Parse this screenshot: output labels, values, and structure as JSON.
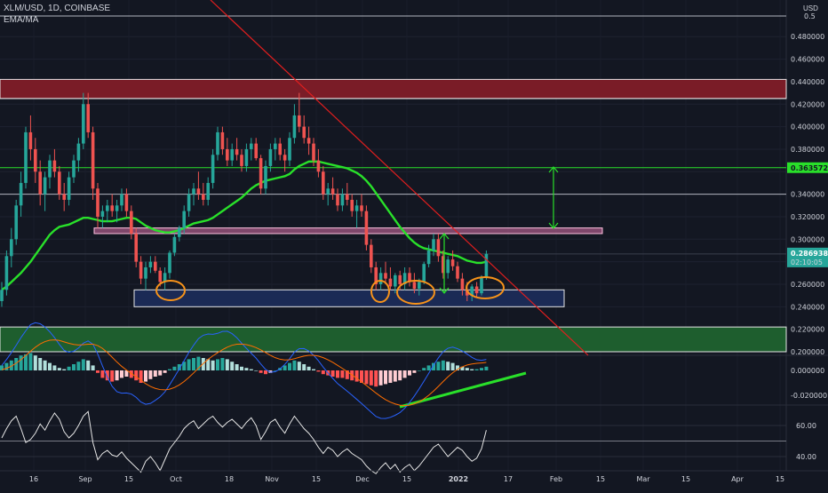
{
  "header": {
    "symbol": "XLM/USD, 1D, COINBASE",
    "indicator": "EMA/MA"
  },
  "currency": "USD",
  "colors": {
    "background": "#131722",
    "up": "#26a69a",
    "down": "#ef5350",
    "ema": "#29e02a",
    "trendline": "#e01e1e",
    "resistance_zone": "#7a1c27",
    "support_zone": "#1e5e2e",
    "target_line": "#29e02a",
    "annotation": "#f7931a",
    "arrow": "#29e02a"
  },
  "chart_data": [
    {
      "type": "candlestick",
      "pane": "price",
      "ylim": [
        0.2,
        0.5
      ],
      "price_ticks": [
        "0.480000",
        "0.460000",
        "0.440000",
        "0.420000",
        "0.400000",
        "0.380000",
        "0.340000",
        "0.320000",
        "0.300000",
        "0.280000",
        "0.260000",
        "0.240000",
        "0.220000",
        "0.200000"
      ],
      "last_price": "0.286938",
      "countdown": "02:10:05",
      "target_price": "0.363572",
      "top_level": "0.5",
      "levels": [
        0.425,
        0.34,
        0.308,
        0.286938,
        0.2
      ],
      "zones": [
        {
          "name": "resistance",
          "from": 0.425,
          "to": 0.442
        },
        {
          "name": "neckline",
          "from": 0.305,
          "to": 0.31
        },
        {
          "name": "support",
          "from": 0.24,
          "to": 0.255
        },
        {
          "name": "demand",
          "from": 0.2,
          "to": 0.222
        }
      ],
      "trendline": {
        "from": [
          "2021-08-02",
          0.5
        ],
        "to": [
          "2022-02-08",
          0.2
        ]
      },
      "x_ticks": [
        "16",
        "Sep",
        "15",
        "Oct",
        "18",
        "Nov",
        "15",
        "Dec",
        "15",
        "2022",
        "17",
        "Feb",
        "15",
        "Mar",
        "15",
        "Apr",
        "15"
      ],
      "ohlc": [
        [
          0.245,
          0.262,
          0.24,
          0.255
        ],
        [
          0.255,
          0.29,
          0.25,
          0.285
        ],
        [
          0.285,
          0.31,
          0.275,
          0.3
        ],
        [
          0.3,
          0.335,
          0.295,
          0.33
        ],
        [
          0.33,
          0.36,
          0.32,
          0.35
        ],
        [
          0.35,
          0.4,
          0.345,
          0.395
        ],
        [
          0.395,
          0.41,
          0.37,
          0.38
        ],
        [
          0.38,
          0.39,
          0.35,
          0.36
        ],
        [
          0.36,
          0.37,
          0.33,
          0.34
        ],
        [
          0.34,
          0.36,
          0.325,
          0.355
        ],
        [
          0.355,
          0.375,
          0.345,
          0.37
        ],
        [
          0.37,
          0.38,
          0.355,
          0.36
        ],
        [
          0.36,
          0.365,
          0.335,
          0.34
        ],
        [
          0.34,
          0.35,
          0.325,
          0.335
        ],
        [
          0.335,
          0.36,
          0.33,
          0.355
        ],
        [
          0.355,
          0.375,
          0.35,
          0.37
        ],
        [
          0.37,
          0.39,
          0.36,
          0.385
        ],
        [
          0.385,
          0.43,
          0.38,
          0.42
        ],
        [
          0.42,
          0.43,
          0.39,
          0.395
        ],
        [
          0.395,
          0.4,
          0.335,
          0.345
        ],
        [
          0.345,
          0.35,
          0.31,
          0.32
        ],
        [
          0.32,
          0.33,
          0.31,
          0.325
        ],
        [
          0.325,
          0.335,
          0.315,
          0.33
        ],
        [
          0.33,
          0.34,
          0.32,
          0.325
        ],
        [
          0.325,
          0.335,
          0.315,
          0.33
        ],
        [
          0.33,
          0.345,
          0.325,
          0.34
        ],
        [
          0.34,
          0.345,
          0.32,
          0.325
        ],
        [
          0.325,
          0.33,
          0.3,
          0.305
        ],
        [
          0.305,
          0.31,
          0.275,
          0.28
        ],
        [
          0.28,
          0.285,
          0.26,
          0.265
        ],
        [
          0.265,
          0.28,
          0.255,
          0.275
        ],
        [
          0.275,
          0.285,
          0.27,
          0.28
        ],
        [
          0.28,
          0.285,
          0.27,
          0.272
        ],
        [
          0.272,
          0.275,
          0.258,
          0.262
        ],
        [
          0.262,
          0.275,
          0.255,
          0.27
        ],
        [
          0.27,
          0.29,
          0.265,
          0.288
        ],
        [
          0.288,
          0.305,
          0.285,
          0.302
        ],
        [
          0.302,
          0.312,
          0.298,
          0.31
        ],
        [
          0.31,
          0.33,
          0.305,
          0.325
        ],
        [
          0.325,
          0.345,
          0.32,
          0.34
        ],
        [
          0.34,
          0.35,
          0.33,
          0.345
        ],
        [
          0.345,
          0.36,
          0.335,
          0.34
        ],
        [
          0.34,
          0.35,
          0.33,
          0.335
        ],
        [
          0.335,
          0.355,
          0.33,
          0.35
        ],
        [
          0.35,
          0.38,
          0.345,
          0.375
        ],
        [
          0.375,
          0.4,
          0.37,
          0.395
        ],
        [
          0.395,
          0.4,
          0.375,
          0.38
        ],
        [
          0.38,
          0.39,
          0.365,
          0.37
        ],
        [
          0.37,
          0.385,
          0.365,
          0.38
        ],
        [
          0.38,
          0.39,
          0.37,
          0.375
        ],
        [
          0.375,
          0.38,
          0.36,
          0.365
        ],
        [
          0.365,
          0.385,
          0.36,
          0.38
        ],
        [
          0.38,
          0.39,
          0.37,
          0.385
        ],
        [
          0.385,
          0.39,
          0.37,
          0.372
        ],
        [
          0.372,
          0.375,
          0.34,
          0.345
        ],
        [
          0.345,
          0.37,
          0.34,
          0.365
        ],
        [
          0.365,
          0.385,
          0.36,
          0.38
        ],
        [
          0.38,
          0.39,
          0.37,
          0.385
        ],
        [
          0.385,
          0.39,
          0.37,
          0.375
        ],
        [
          0.375,
          0.38,
          0.36,
          0.37
        ],
        [
          0.37,
          0.395,
          0.365,
          0.39
        ],
        [
          0.39,
          0.42,
          0.385,
          0.41
        ],
        [
          0.41,
          0.43,
          0.395,
          0.4
        ],
        [
          0.4,
          0.41,
          0.385,
          0.39
        ],
        [
          0.39,
          0.4,
          0.375,
          0.385
        ],
        [
          0.385,
          0.39,
          0.365,
          0.37
        ],
        [
          0.37,
          0.38,
          0.355,
          0.36
        ],
        [
          0.36,
          0.365,
          0.335,
          0.34
        ],
        [
          0.34,
          0.35,
          0.33,
          0.345
        ],
        [
          0.345,
          0.355,
          0.335,
          0.34
        ],
        [
          0.34,
          0.345,
          0.325,
          0.33
        ],
        [
          0.33,
          0.345,
          0.325,
          0.34
        ],
        [
          0.34,
          0.35,
          0.33,
          0.335
        ],
        [
          0.335,
          0.34,
          0.32,
          0.325
        ],
        [
          0.325,
          0.335,
          0.31,
          0.33
        ],
        [
          0.33,
          0.34,
          0.32,
          0.325
        ],
        [
          0.325,
          0.33,
          0.29,
          0.295
        ],
        [
          0.295,
          0.3,
          0.27,
          0.275
        ],
        [
          0.275,
          0.28,
          0.255,
          0.26
        ],
        [
          0.26,
          0.275,
          0.255,
          0.27
        ],
        [
          0.27,
          0.28,
          0.26,
          0.265
        ],
        [
          0.265,
          0.275,
          0.255,
          0.258
        ],
        [
          0.258,
          0.27,
          0.252,
          0.268
        ],
        [
          0.268,
          0.272,
          0.255,
          0.26
        ],
        [
          0.26,
          0.275,
          0.255,
          0.27
        ],
        [
          0.27,
          0.275,
          0.258,
          0.262
        ],
        [
          0.262,
          0.27,
          0.252,
          0.256
        ],
        [
          0.256,
          0.265,
          0.25,
          0.262
        ],
        [
          0.262,
          0.28,
          0.26,
          0.278
        ],
        [
          0.278,
          0.295,
          0.275,
          0.29
        ],
        [
          0.29,
          0.305,
          0.285,
          0.3
        ],
        [
          0.3,
          0.305,
          0.28,
          0.285
        ],
        [
          0.285,
          0.29,
          0.265,
          0.27
        ],
        [
          0.27,
          0.285,
          0.265,
          0.282
        ],
        [
          0.282,
          0.29,
          0.272,
          0.276
        ],
        [
          0.276,
          0.28,
          0.262,
          0.265
        ],
        [
          0.265,
          0.27,
          0.25,
          0.255
        ],
        [
          0.255,
          0.262,
          0.245,
          0.25
        ],
        [
          0.25,
          0.26,
          0.245,
          0.258
        ],
        [
          0.258,
          0.262,
          0.248,
          0.252
        ],
        [
          0.252,
          0.268,
          0.25,
          0.266
        ],
        [
          0.266,
          0.29,
          0.264,
          0.287
        ]
      ],
      "ema": [
        0.255,
        0.258,
        0.262,
        0.266,
        0.27,
        0.275,
        0.28,
        0.286,
        0.292,
        0.298,
        0.304,
        0.308,
        0.311,
        0.312,
        0.313,
        0.315,
        0.317,
        0.319,
        0.319,
        0.318,
        0.317,
        0.316,
        0.316,
        0.316,
        0.317,
        0.318,
        0.319,
        0.319,
        0.318,
        0.315,
        0.312,
        0.31,
        0.308,
        0.307,
        0.306,
        0.306,
        0.307,
        0.308,
        0.31,
        0.312,
        0.314,
        0.315,
        0.316,
        0.317,
        0.319,
        0.322,
        0.325,
        0.328,
        0.331,
        0.334,
        0.337,
        0.341,
        0.345,
        0.348,
        0.35,
        0.352,
        0.353,
        0.354,
        0.355,
        0.356,
        0.358,
        0.362,
        0.365,
        0.367,
        0.369,
        0.369,
        0.369,
        0.368,
        0.367,
        0.366,
        0.365,
        0.364,
        0.363,
        0.361,
        0.359,
        0.356,
        0.352,
        0.347,
        0.341,
        0.335,
        0.329,
        0.323,
        0.317,
        0.311,
        0.306,
        0.301,
        0.297,
        0.294,
        0.292,
        0.291,
        0.29,
        0.289,
        0.288,
        0.287,
        0.286,
        0.285,
        0.283,
        0.281,
        0.28,
        0.279,
        0.279,
        0.28
      ]
    },
    {
      "type": "bar",
      "pane": "macd",
      "ticks": [
        "0.000000",
        "-0.020000"
      ],
      "values": [
        0.004,
        0.006,
        0.008,
        0.01,
        0.012,
        0.013,
        0.014,
        0.012,
        0.01,
        0.008,
        0.006,
        0.004,
        0.002,
        0.001,
        0.003,
        0.005,
        0.007,
        0.009,
        0.008,
        0.004,
        -0.002,
        -0.006,
        -0.008,
        -0.009,
        -0.008,
        -0.006,
        -0.005,
        -0.006,
        -0.008,
        -0.01,
        -0.009,
        -0.007,
        -0.005,
        -0.004,
        -0.002,
        0.001,
        0.003,
        0.005,
        0.007,
        0.009,
        0.01,
        0.011,
        0.01,
        0.009,
        0.008,
        0.009,
        0.01,
        0.009,
        0.007,
        0.005,
        0.003,
        0.002,
        0.001,
        0.0,
        -0.002,
        -0.003,
        -0.002,
        0.0,
        0.002,
        0.004,
        0.006,
        0.008,
        0.007,
        0.005,
        0.003,
        0.001,
        -0.001,
        -0.003,
        -0.004,
        -0.005,
        -0.006,
        -0.006,
        -0.007,
        -0.008,
        -0.009,
        -0.01,
        -0.011,
        -0.012,
        -0.013,
        -0.012,
        -0.011,
        -0.01,
        -0.009,
        -0.008,
        -0.006,
        -0.004,
        -0.002,
        0.0,
        0.002,
        0.004,
        0.006,
        0.007,
        0.008,
        0.007,
        0.006,
        0.004,
        0.003,
        0.002,
        0.001,
        0.001,
        0.002,
        0.003
      ]
    },
    {
      "type": "line",
      "pane": "rsi",
      "ticks": [
        "60.00",
        "40.00"
      ],
      "values": [
        52,
        58,
        63,
        66,
        58,
        49,
        51,
        55,
        61,
        57,
        63,
        68,
        64,
        56,
        52,
        55,
        60,
        66,
        69,
        49,
        38,
        42,
        44,
        41,
        40,
        43,
        39,
        36,
        33,
        30,
        37,
        40,
        36,
        31,
        38,
        45,
        49,
        53,
        58,
        61,
        63,
        58,
        61,
        64,
        66,
        62,
        59,
        62,
        64,
        61,
        58,
        62,
        65,
        60,
        51,
        56,
        62,
        64,
        59,
        55,
        61,
        66,
        62,
        58,
        55,
        51,
        46,
        42,
        46,
        44,
        40,
        43,
        45,
        42,
        40,
        38,
        34,
        31,
        29,
        33,
        36,
        32,
        35,
        30,
        33,
        35,
        31,
        34,
        38,
        42,
        46,
        48,
        44,
        40,
        43,
        46,
        44,
        40,
        37,
        39,
        45,
        57
      ]
    }
  ]
}
